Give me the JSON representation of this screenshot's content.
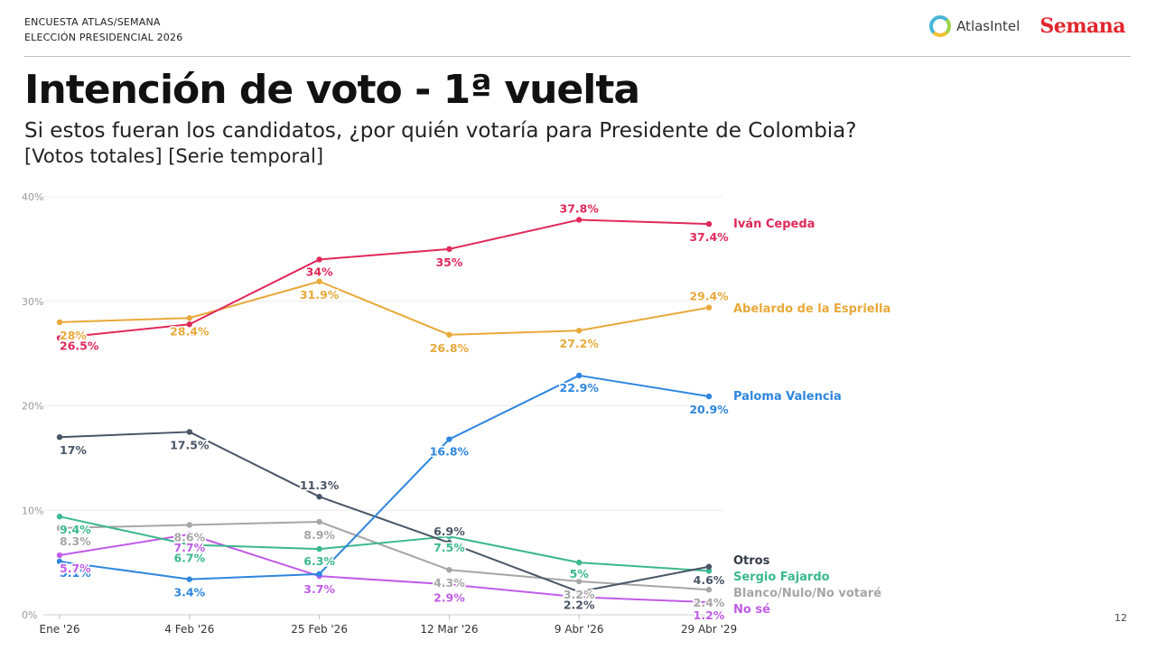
{
  "header": {
    "line1": "ENCUESTA ATLAS/SEMANA",
    "line2": "ELECCIÓN PRESIDENCIAL 2026",
    "logo_atlas": "AtlasIntel",
    "logo_semana": "Semana"
  },
  "title": "Intención de voto - 1ª vuelta",
  "subtitle": "Si estos fueran los candidatos, ¿por quién votaría para Presidente de Colombia?",
  "subtitle2": "[Votos totales] [Serie temporal]",
  "page_number": "12",
  "chart_data": {
    "type": "line",
    "categories": [
      "Ene '26",
      "4 Feb '26",
      "25 Feb '26",
      "12 Mar '26",
      "9 Abr '26",
      "29 Abr '29"
    ],
    "y_ticks": [
      "0%",
      "10%",
      "20%",
      "30%",
      "40%"
    ],
    "ylim": [
      0,
      40
    ],
    "grid": true,
    "legend_placement": "right",
    "series": [
      {
        "name": "Iván Cepeda",
        "color": "#e0295a",
        "values": [
          26.5,
          27.8,
          34,
          35,
          37.8,
          37.4
        ],
        "labels": [
          "26.5%",
          "27.8%",
          "34%",
          "35%",
          "37.8%",
          "37.4%"
        ]
      },
      {
        "name": "Abelardo de la Espriella",
        "color": "#e8a93a",
        "values": [
          28,
          28.4,
          31.9,
          26.8,
          27.2,
          29.4
        ],
        "labels": [
          "28%",
          "28.4%",
          "31.9%",
          "26.8%",
          "27.2%",
          "29.4%"
        ]
      },
      {
        "name": "Paloma Valencia",
        "color": "#2e86de",
        "values": [
          5.1,
          3.4,
          3.9,
          16.8,
          22.9,
          20.9
        ],
        "labels": [
          "5.1%",
          "3.4%",
          "",
          "16.8%",
          "22.9%",
          "20.9%"
        ]
      },
      {
        "name": "Otros",
        "color": "#4a5568",
        "values": [
          17,
          17.5,
          11.3,
          6.9,
          2.2,
          4.6
        ],
        "labels": [
          "17%",
          "17.5%",
          "11.3%",
          "6.9%",
          "2.2%",
          "4.6%"
        ]
      },
      {
        "name": "Sergio Fajardo",
        "color": "#3bb88f",
        "values": [
          9.4,
          6.7,
          6.3,
          7.5,
          5,
          4.2
        ],
        "labels": [
          "9.4%",
          "6.7%",
          "6.3%",
          "7.5%",
          "5%",
          ""
        ]
      },
      {
        "name": "Blanco/Nulo/No votaré",
        "color": "#a6a6a6",
        "values": [
          8.3,
          8.6,
          8.9,
          4.3,
          3.2,
          2.4
        ],
        "labels": [
          "8.3%",
          "8.6%",
          "8.9%",
          "4.3%",
          "3.2%",
          "2.4%"
        ]
      },
      {
        "name": "No sé",
        "color": "#c05ce8",
        "values": [
          5.7,
          7.7,
          3.7,
          2.9,
          1.7,
          1.2
        ],
        "labels": [
          "5.7%",
          "7.7%",
          "3.7%",
          "2.9%",
          "",
          "1.2%"
        ]
      }
    ]
  }
}
